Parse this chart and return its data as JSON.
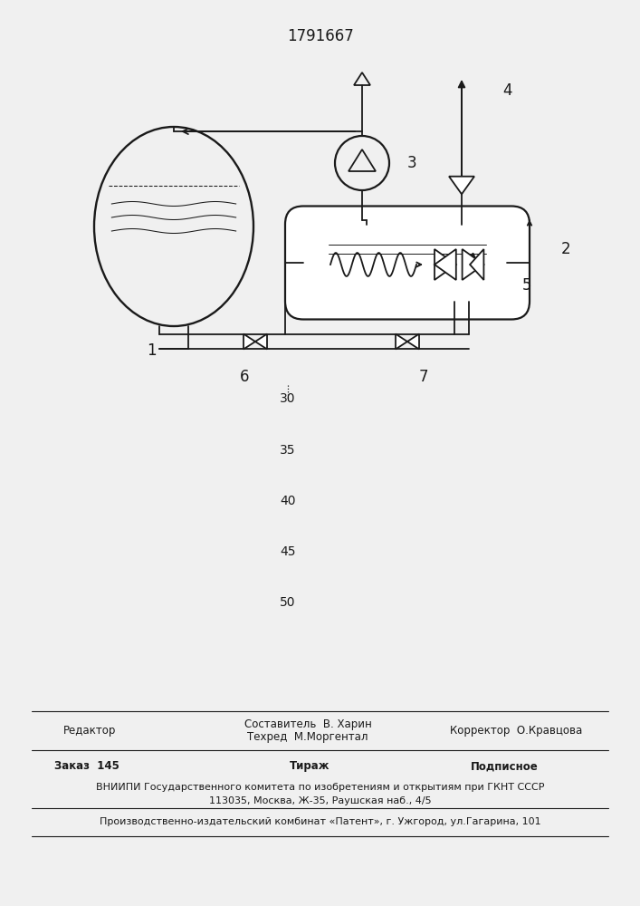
{
  "title": "1791667",
  "bg_color": "#f0f0f0",
  "line_color": "#1a1a1a",
  "page_numbers": [
    "30",
    "35",
    "40",
    "45",
    "50"
  ],
  "footer_editor": "Редактор",
  "footer_compiler": "Составитель  В. Харин",
  "footer_techred": "Техред  М.Моргентал",
  "footer_corrector": "Корректор  О.Кравцова",
  "footer_order": "Заказ  145",
  "footer_tirazh": "Тираж",
  "footer_podpisnoe": "Подписное",
  "footer_vniiipi": "ВНИИПИ Государственного комитета по изобретениям и открытиям при ГКНТ СССР",
  "footer_address": "113035, Москва, Ж-35, Раушская наб., 4/5",
  "footer_publisher": "Производственно-издательский комбинат «Патент», г. Ужгород, ул.Гагарина, 101"
}
